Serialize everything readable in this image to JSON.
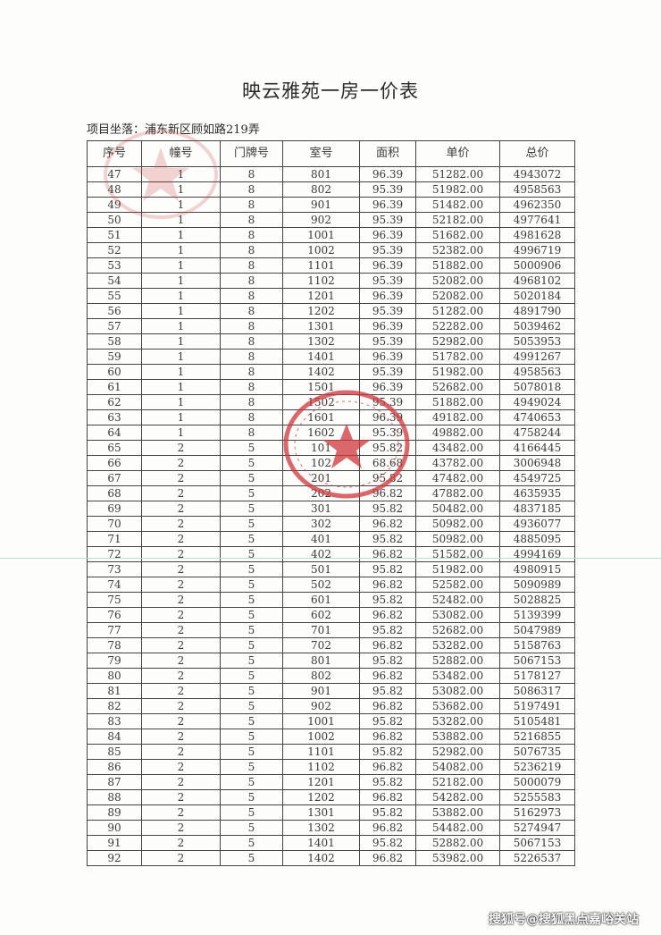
{
  "title": "映云雅苑一房一价表",
  "address": "项目坐落：浦东新区顾如路219弄",
  "columns": [
    "序号",
    "幢号",
    "门牌号",
    "室号",
    "面积",
    "单价",
    "总价"
  ],
  "rows": [
    [
      "47",
      "1",
      "8",
      "801",
      "96.39",
      "51282.00",
      "4943072"
    ],
    [
      "48",
      "1",
      "8",
      "802",
      "95.39",
      "51982.00",
      "4958563"
    ],
    [
      "49",
      "1",
      "8",
      "901",
      "96.39",
      "51482.00",
      "4962350"
    ],
    [
      "50",
      "1",
      "8",
      "902",
      "95.39",
      "52182.00",
      "4977641"
    ],
    [
      "51",
      "1",
      "8",
      "1001",
      "96.39",
      "51682.00",
      "4981628"
    ],
    [
      "52",
      "1",
      "8",
      "1002",
      "95.39",
      "52382.00",
      "4996719"
    ],
    [
      "53",
      "1",
      "8",
      "1101",
      "96.39",
      "51882.00",
      "5000906"
    ],
    [
      "54",
      "1",
      "8",
      "1102",
      "95.39",
      "52082.00",
      "4968102"
    ],
    [
      "55",
      "1",
      "8",
      "1201",
      "96.39",
      "52082.00",
      "5020184"
    ],
    [
      "56",
      "1",
      "8",
      "1202",
      "95.39",
      "51282.00",
      "4891790"
    ],
    [
      "57",
      "1",
      "8",
      "1301",
      "96.39",
      "52282.00",
      "5039462"
    ],
    [
      "58",
      "1",
      "8",
      "1302",
      "95.39",
      "52982.00",
      "5053953"
    ],
    [
      "59",
      "1",
      "8",
      "1401",
      "96.39",
      "51782.00",
      "4991267"
    ],
    [
      "60",
      "1",
      "8",
      "1402",
      "95.39",
      "51982.00",
      "4958563"
    ],
    [
      "61",
      "1",
      "8",
      "1501",
      "96.39",
      "52682.00",
      "5078018"
    ],
    [
      "62",
      "1",
      "8",
      "1502",
      "95.39",
      "51882.00",
      "4949024"
    ],
    [
      "63",
      "1",
      "8",
      "1601",
      "96.39",
      "49182.00",
      "4740653"
    ],
    [
      "64",
      "1",
      "8",
      "1602",
      "95.39",
      "49882.00",
      "4758244"
    ],
    [
      "65",
      "2",
      "5",
      "101",
      "95.82",
      "43482.00",
      "4166445"
    ],
    [
      "66",
      "2",
      "5",
      "102",
      "68.68",
      "43782.00",
      "3006948"
    ],
    [
      "67",
      "2",
      "5",
      "201",
      "95.82",
      "47482.00",
      "4549725"
    ],
    [
      "68",
      "2",
      "5",
      "202",
      "96.82",
      "47882.00",
      "4635935"
    ],
    [
      "69",
      "2",
      "5",
      "301",
      "95.82",
      "50482.00",
      "4837185"
    ],
    [
      "70",
      "2",
      "5",
      "302",
      "96.82",
      "50982.00",
      "4936077"
    ],
    [
      "71",
      "2",
      "5",
      "401",
      "95.82",
      "50982.00",
      "4885095"
    ],
    [
      "72",
      "2",
      "5",
      "402",
      "96.82",
      "51582.00",
      "4994169"
    ],
    [
      "73",
      "2",
      "5",
      "501",
      "95.82",
      "51982.00",
      "4980915"
    ],
    [
      "74",
      "2",
      "5",
      "502",
      "96.82",
      "52582.00",
      "5090989"
    ],
    [
      "75",
      "2",
      "5",
      "601",
      "95.82",
      "52482.00",
      "5028825"
    ],
    [
      "76",
      "2",
      "5",
      "602",
      "96.82",
      "53082.00",
      "5139399"
    ],
    [
      "77",
      "2",
      "5",
      "701",
      "95.82",
      "52682.00",
      "5047989"
    ],
    [
      "78",
      "2",
      "5",
      "702",
      "96.82",
      "53282.00",
      "5158763"
    ],
    [
      "79",
      "2",
      "5",
      "801",
      "95.82",
      "52882.00",
      "5067153"
    ],
    [
      "80",
      "2",
      "5",
      "802",
      "96.82",
      "53482.00",
      "5178127"
    ],
    [
      "81",
      "2",
      "5",
      "901",
      "95.82",
      "53082.00",
      "5086317"
    ],
    [
      "82",
      "2",
      "5",
      "902",
      "96.82",
      "53682.00",
      "5197491"
    ],
    [
      "83",
      "2",
      "5",
      "1001",
      "95.82",
      "53282.00",
      "5105481"
    ],
    [
      "84",
      "2",
      "5",
      "1002",
      "96.82",
      "53882.00",
      "5216855"
    ],
    [
      "85",
      "2",
      "5",
      "1101",
      "95.82",
      "52982.00",
      "5076735"
    ],
    [
      "86",
      "2",
      "5",
      "1102",
      "96.82",
      "54082.00",
      "5236219"
    ],
    [
      "87",
      "2",
      "5",
      "1201",
      "95.82",
      "52182.00",
      "5000079"
    ],
    [
      "88",
      "2",
      "5",
      "1202",
      "96.82",
      "54282.00",
      "5255583"
    ],
    [
      "89",
      "2",
      "5",
      "1301",
      "95.82",
      "53882.00",
      "5162973"
    ],
    [
      "90",
      "2",
      "5",
      "1302",
      "96.82",
      "54482.00",
      "5274947"
    ],
    [
      "91",
      "2",
      "5",
      "1401",
      "95.82",
      "52882.00",
      "5067153"
    ],
    [
      "92",
      "2",
      "5",
      "1402",
      "96.82",
      "53982.00",
      "5226537"
    ]
  ],
  "watermark": "搜狐号@搜狐黑点嘉峪关站",
  "colors": {
    "stamp": "#d2363a",
    "text": "#2a2a2a"
  }
}
